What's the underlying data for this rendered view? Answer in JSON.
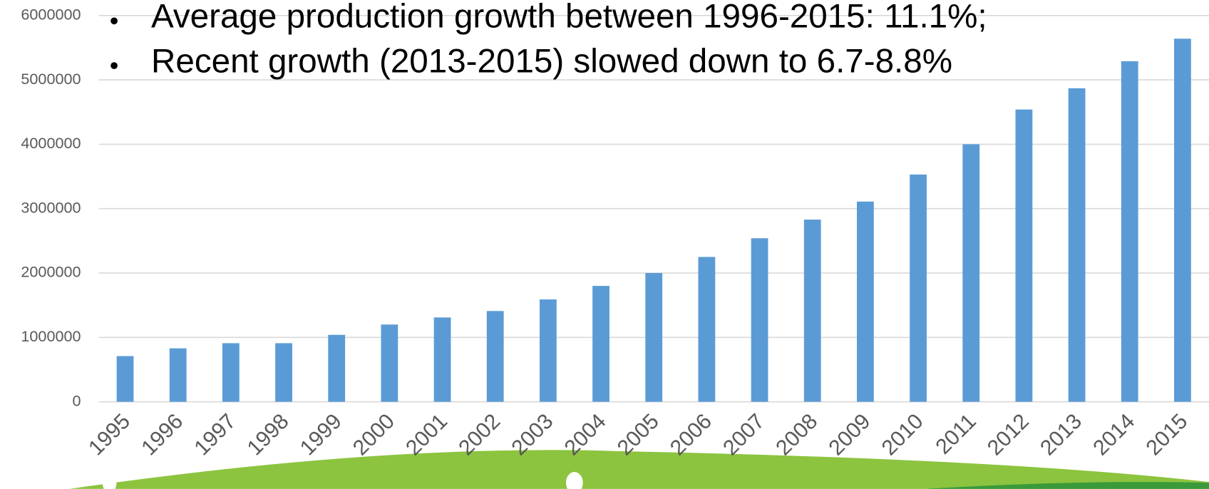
{
  "chart_data": {
    "type": "bar",
    "annotations": [
      "Average production growth between 1996-2015: 11.1%;",
      "Recent growth (2013-2015) slowed down to 6.7-8.8%"
    ],
    "categories": [
      "1995",
      "1996",
      "1997",
      "1998",
      "1999",
      "2000",
      "2001",
      "2002",
      "2003",
      "2004",
      "2005",
      "2006",
      "2007",
      "2008",
      "2009",
      "2010",
      "2011",
      "2012",
      "2013",
      "2014",
      "2015"
    ],
    "values": [
      710000,
      830000,
      910000,
      910000,
      1040000,
      1200000,
      1310000,
      1410000,
      1590000,
      1800000,
      2000000,
      2250000,
      2540000,
      2830000,
      3110000,
      3530000,
      4000000,
      4540000,
      4870000,
      5290000,
      5640000
    ],
    "color": "#5b9bd5",
    "ylim": [
      0,
      6000000
    ],
    "yticks": [
      0,
      1000000,
      2000000,
      3000000,
      4000000,
      5000000,
      6000000
    ],
    "grid": true
  }
}
